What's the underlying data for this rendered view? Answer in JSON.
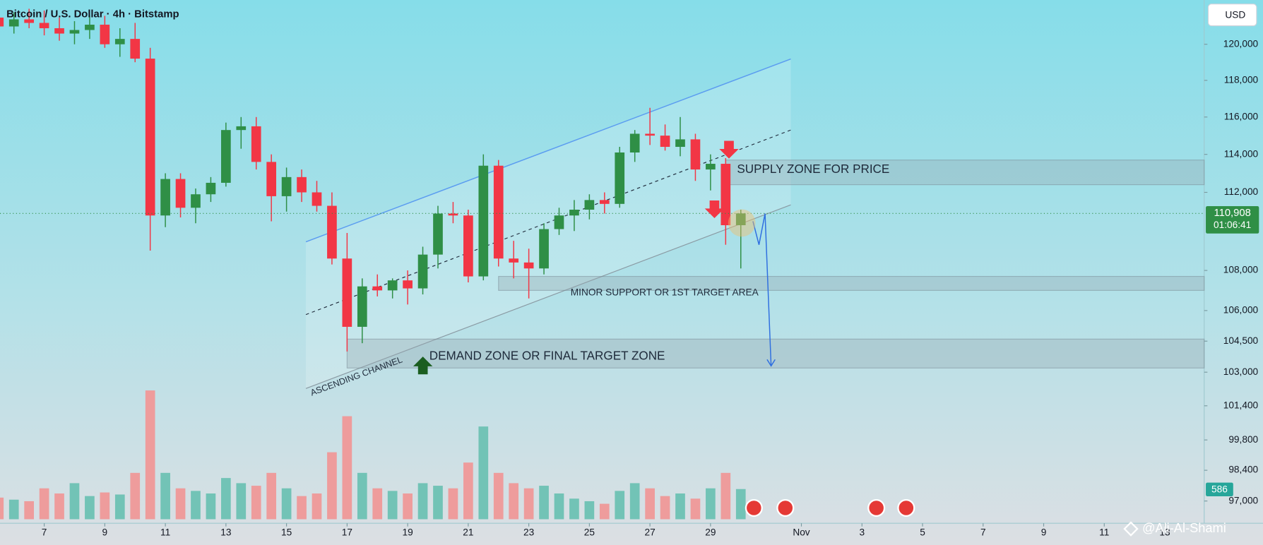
{
  "chart_data": {
    "type": "candlestick",
    "title": "Bitcoin / U.S. Dollar · 4h · Bitstamp",
    "currency": "USD",
    "log_scale": true,
    "grid": false,
    "up_color": "#2f8f46",
    "down_color": "#f23645",
    "volume_up_color": "#72c3b6",
    "volume_down_color": "#ee9c9c",
    "x": [
      5.5,
      6,
      6.5,
      7,
      7.5,
      8,
      8.5,
      9,
      9.5,
      10,
      10.5,
      11,
      11.5,
      12,
      12.5,
      13,
      13.5,
      14,
      14.5,
      15,
      15.5,
      16,
      16.5,
      17,
      17.5,
      18,
      18.5,
      19,
      19.5,
      20,
      20.5,
      21,
      21.5,
      22,
      22.5,
      23,
      23.5,
      24,
      24.5,
      25,
      25.5,
      26,
      26.5,
      27,
      27.5,
      28,
      28.5,
      29,
      29.5,
      30
    ],
    "open": [
      121500,
      121000,
      121400,
      121200,
      120900,
      120600,
      120800,
      121100,
      120000,
      120300,
      119200,
      110800,
      112700,
      111200,
      111900,
      112500,
      115300,
      115500,
      113600,
      111800,
      112800,
      112000,
      111300,
      108600,
      105200,
      107200,
      107000,
      107500,
      107100,
      108800,
      110900,
      110800,
      107700,
      113400,
      108600,
      108400,
      108100,
      110100,
      110800,
      111100,
      111600,
      111400,
      114100,
      115100,
      115000,
      114400,
      114800,
      113200,
      113500,
      110300
    ],
    "high": [
      122400,
      121800,
      122000,
      121900,
      121500,
      121300,
      121600,
      121600,
      120900,
      121200,
      119800,
      113000,
      113000,
      112200,
      112800,
      115700,
      116000,
      116000,
      114000,
      113300,
      113200,
      112600,
      112000,
      109900,
      107600,
      107800,
      107600,
      108000,
      109200,
      111300,
      111500,
      111100,
      114000,
      113700,
      109500,
      109100,
      110400,
      111200,
      111600,
      111900,
      112000,
      114400,
      115300,
      116500,
      115600,
      116000,
      115100,
      114000,
      113800,
      111100
    ],
    "low": [
      120800,
      120600,
      120900,
      120500,
      120200,
      120000,
      120300,
      119800,
      119300,
      119000,
      109000,
      110200,
      110700,
      110400,
      111500,
      112300,
      114300,
      113200,
      110500,
      111000,
      111500,
      111000,
      108300,
      104000,
      104400,
      106700,
      106600,
      106300,
      106800,
      108100,
      110400,
      107400,
      107500,
      108200,
      107600,
      106600,
      107800,
      109800,
      110000,
      110600,
      110900,
      111200,
      113600,
      114500,
      114200,
      113900,
      112600,
      112100,
      109300,
      108100
    ],
    "close": [
      121000,
      121400,
      121200,
      120900,
      120600,
      120800,
      121100,
      120000,
      120300,
      119200,
      110800,
      112700,
      111200,
      111900,
      112500,
      115300,
      115500,
      113600,
      111800,
      112800,
      112000,
      111300,
      108600,
      105200,
      107200,
      107000,
      107500,
      107100,
      108800,
      110900,
      110800,
      107700,
      113400,
      108600,
      108400,
      108100,
      110100,
      110800,
      111100,
      111600,
      111400,
      114100,
      115100,
      115000,
      114400,
      114800,
      113200,
      113500,
      110300,
      110908
    ],
    "close_label": "110,908",
    "countdown": "01:06:41",
    "volume": [
      420,
      380,
      350,
      600,
      500,
      700,
      450,
      520,
      480,
      900,
      2500,
      900,
      600,
      550,
      500,
      800,
      700,
      650,
      900,
      600,
      450,
      500,
      1300,
      2000,
      900,
      600,
      550,
      500,
      700,
      650,
      600,
      1100,
      1800,
      900,
      700,
      600,
      650,
      500,
      400,
      350,
      300,
      550,
      700,
      600,
      450,
      500,
      400,
      600,
      900,
      586
    ],
    "xlim": [
      5.54,
      45.3
    ],
    "ylim": [
      96000,
      122500
    ],
    "xticks": [
      7,
      9,
      11,
      13,
      15,
      17,
      19,
      21,
      23,
      25,
      27,
      29,
      {
        "value": 32,
        "label": "Nov"
      },
      {
        "value": 34,
        "label": "3"
      },
      {
        "value": 36,
        "label": "5"
      },
      {
        "value": 38,
        "label": "7"
      },
      {
        "value": 40,
        "label": "9"
      },
      {
        "value": 42,
        "label": "11"
      },
      {
        "value": 44,
        "label": "13"
      }
    ],
    "yticks": [
      {
        "value": 120000,
        "label": "120,000"
      },
      {
        "value": 118000,
        "label": "118,000"
      },
      {
        "value": 116000,
        "label": "116,000"
      },
      {
        "value": 114000,
        "label": "114,000"
      },
      {
        "value": 112000,
        "label": "112,000"
      },
      {
        "value": 108000,
        "label": "108,000"
      },
      {
        "value": 106000,
        "label": "106,000"
      },
      {
        "value": 104500,
        "label": "104,500"
      },
      {
        "value": 103000,
        "label": "103,000"
      },
      {
        "value": 101400,
        "label": "101,400"
      },
      {
        "value": 99800,
        "label": "99,800"
      },
      {
        "value": 98400,
        "label": "98,400"
      },
      {
        "value": 97000,
        "label": "97,000"
      }
    ],
    "zones": [
      {
        "label": "SUPPLY ZONE FOR PRICE",
        "xlim": [
          29.5,
          45.3
        ],
        "ylim": [
          112400,
          113700
        ]
      },
      {
        "label": "MINOR SUPPORT OR 1ST TARGET AREA",
        "xlim": [
          22,
          45.3
        ],
        "ylim": [
          107000,
          107700
        ]
      },
      {
        "label": "DEMAND ZONE OR FINAL TARGET ZONE",
        "xlim": [
          17,
          45.3
        ],
        "ylim": [
          103200,
          104600
        ]
      }
    ],
    "channel": {
      "label": "ASCENDING CHANNEL",
      "x": [
        15.64,
        31.65
      ],
      "upper": [
        109450,
        119180
      ],
      "middle": [
        105800,
        115300
      ],
      "lower": [
        102220,
        111350
      ]
    },
    "projection": {
      "x": [
        30.4,
        30.6,
        30.8,
        31.0
      ],
      "y": [
        110500,
        109300,
        110900,
        103300
      ]
    },
    "watermark": "@Ali-Al-Shami"
  }
}
